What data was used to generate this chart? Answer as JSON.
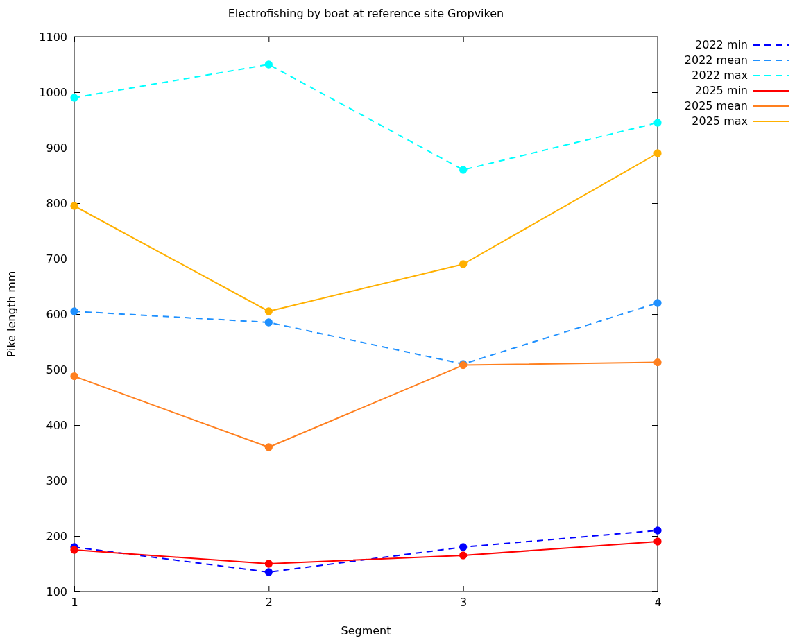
{
  "chart_data": {
    "type": "line",
    "title": "Electrofishing by boat at reference site Gropviken",
    "xlabel": "Segment",
    "ylabel": "Pike length mm",
    "x": [
      1,
      2,
      3,
      4
    ],
    "xlim": [
      1,
      4
    ],
    "xticks": [
      1,
      2,
      3,
      4
    ],
    "ylim": [
      100,
      1100
    ],
    "yticks": [
      100,
      200,
      300,
      400,
      500,
      600,
      700,
      800,
      900,
      1000,
      1100
    ],
    "marker": "circle",
    "legend": "right",
    "grid": false,
    "series": [
      {
        "name": "2022 min",
        "color": "#0000ff",
        "line_style": "dashed",
        "values": [
          180,
          135,
          180,
          210
        ]
      },
      {
        "name": "2022 mean",
        "color": "#1e90ff",
        "line_style": "dashed",
        "values": [
          605,
          585,
          510,
          620
        ]
      },
      {
        "name": "2022 max",
        "color": "#00ffff",
        "line_style": "dashed",
        "values": [
          990,
          1050,
          860,
          945
        ]
      },
      {
        "name": "2025 min",
        "color": "#ff0000",
        "line_style": "solid",
        "values": [
          175,
          150,
          165,
          190
        ]
      },
      {
        "name": "2025 mean",
        "color": "#ff7f1e",
        "line_style": "solid",
        "values": [
          488,
          360,
          508,
          513
        ]
      },
      {
        "name": "2025 max",
        "color": "#ffb000",
        "line_style": "solid",
        "values": [
          795,
          605,
          690,
          890
        ]
      }
    ]
  }
}
